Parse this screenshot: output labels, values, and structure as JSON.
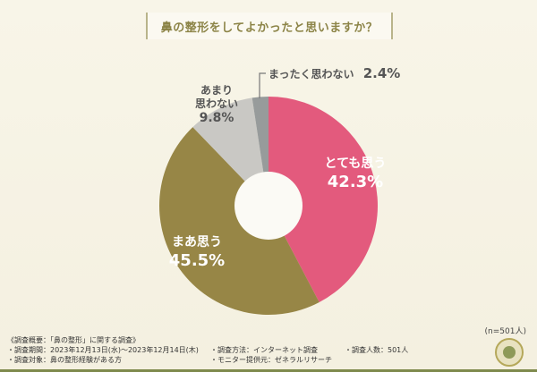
{
  "title": "鼻の整形をしてよかったと思いますか？",
  "chart_data": {
    "type": "pie",
    "subtype": "donut",
    "title": "鼻の整形をしてよかったと思いますか？",
    "categories": [
      "とても思う",
      "まあ思う",
      "あまり思わない",
      "まったく思わない"
    ],
    "values": [
      42.3,
      45.5,
      9.8,
      2.4
    ],
    "colors": [
      "#e35a7d",
      "#978646",
      "#c9c8c4",
      "#979b9b"
    ],
    "unit": "%",
    "n": 501,
    "legend_position": "none"
  },
  "slices": [
    {
      "label": "とても思う",
      "pct": "42.3%",
      "color": "#e35a7d"
    },
    {
      "label": "まあ思う",
      "pct": "45.5%",
      "color": "#978646"
    },
    {
      "label_line1": "あまり",
      "label_line2": "思わない",
      "pct": "9.8%",
      "color": "#c9c8c4"
    },
    {
      "label": "まったく思わない",
      "pct": "2.4%",
      "color": "#979b9b"
    }
  ],
  "sample": "(n=501人)",
  "footer": {
    "heading": "《調査概要：「鼻の整形」に関する調査》",
    "period": "・調査期間：2023年12月13日(水)～2023年12月14日(木)",
    "target": "・調査対象：鼻の整形経験がある方",
    "method": "・調査方法：インターネット調査",
    "provider": "・モニター提供元：ゼネラルリサーチ",
    "count": "・調査人数：501人"
  }
}
